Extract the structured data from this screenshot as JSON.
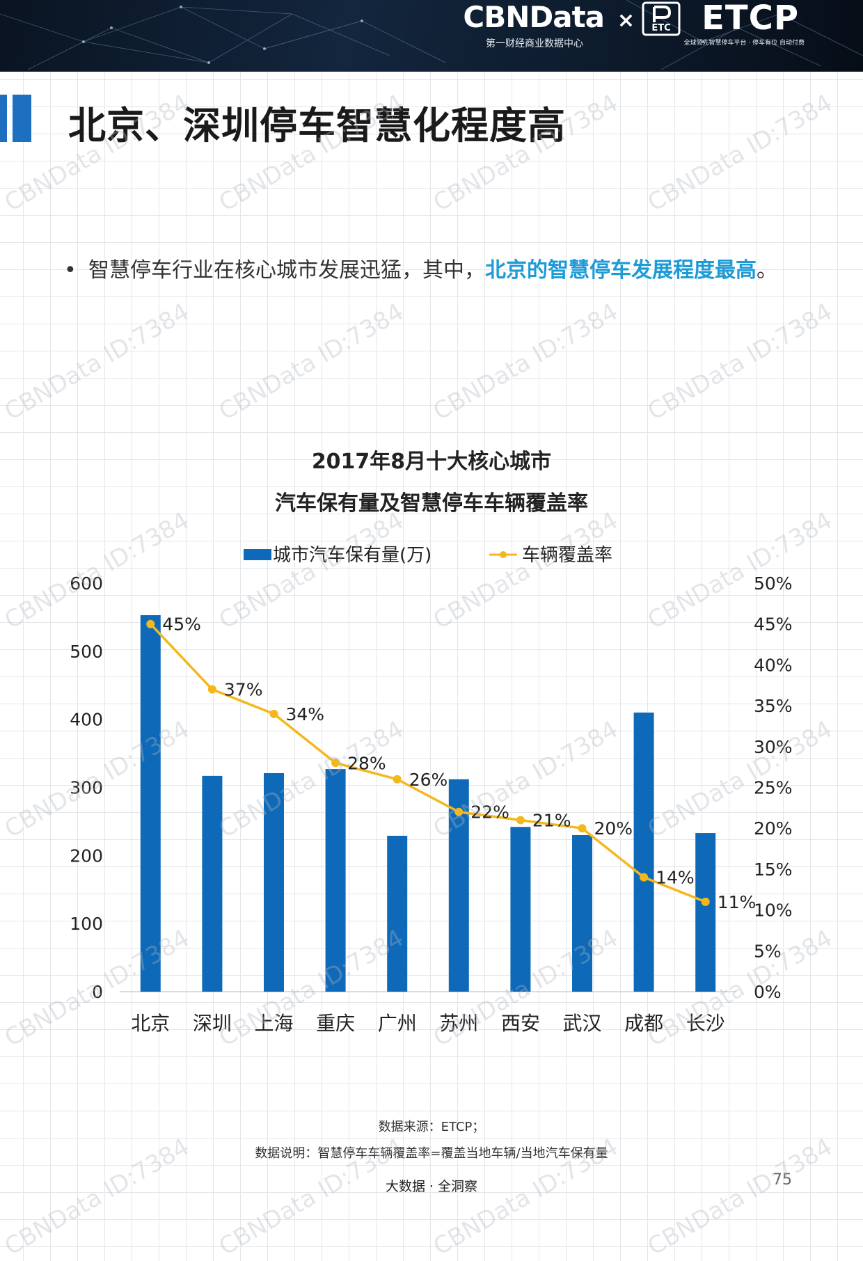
{
  "header": {
    "brand_left": "CBNData",
    "brand_left_sub": "第一财经商业数据中心",
    "separator": "×",
    "brand_icon_text": "ETC",
    "brand_right": "ETCP",
    "brand_right_sub": "全球领先智慧停车平台 · 停车有位 自动付费"
  },
  "page_title": "北京、深圳停车智慧化程度高",
  "bullet": {
    "marker": "•",
    "text_plain": "智慧停车行业在核心城市发展迅猛，其中，",
    "text_highlight": "北京的智慧停车发展程度最高",
    "text_end": "。",
    "highlight_color": "#1c9bd7"
  },
  "chart_data": {
    "type": "bar",
    "title": "2017年8月十大核心城市",
    "subtitle": "汽车保有量及智慧停车车辆覆盖率",
    "categories": [
      "北京",
      "深圳",
      "上海",
      "重庆",
      "广州",
      "苏州",
      "西安",
      "武汉",
      "成都",
      "长沙"
    ],
    "series": [
      {
        "name": "城市汽车保有量(万)",
        "type": "bar",
        "axis": "left",
        "color": "#0e6ab8",
        "values": [
          553,
          317,
          321,
          327,
          229,
          312,
          242,
          230,
          410,
          233
        ]
      },
      {
        "name": "车辆覆盖率",
        "type": "line",
        "axis": "right",
        "color": "#f5b81c",
        "values": [
          45,
          37,
          34,
          28,
          26,
          22,
          21,
          20,
          14,
          11
        ],
        "labels": [
          "45%",
          "37%",
          "34%",
          "28%",
          "26%",
          "22%",
          "21%",
          "20%",
          "14%",
          "11%"
        ]
      }
    ],
    "y_left": {
      "ylim": [
        0,
        600
      ],
      "ticks": [
        "0",
        "100",
        "200",
        "300",
        "400",
        "500",
        "600"
      ]
    },
    "y_right": {
      "ylim": [
        0,
        50
      ],
      "ticks": [
        "0%",
        "5%",
        "10%",
        "15%",
        "20%",
        "25%",
        "30%",
        "35%",
        "40%",
        "45%",
        "50%"
      ]
    },
    "legend": "top-center",
    "grid": false
  },
  "source": {
    "line1": "数据来源：ETCP；",
    "line2": "数据说明：智慧停车车辆覆盖率=覆盖当地车辆/当地汽车保有量"
  },
  "footer_label": "大数据 · 全洞察",
  "page_number": "75",
  "watermark": "CBNData ID:7384"
}
